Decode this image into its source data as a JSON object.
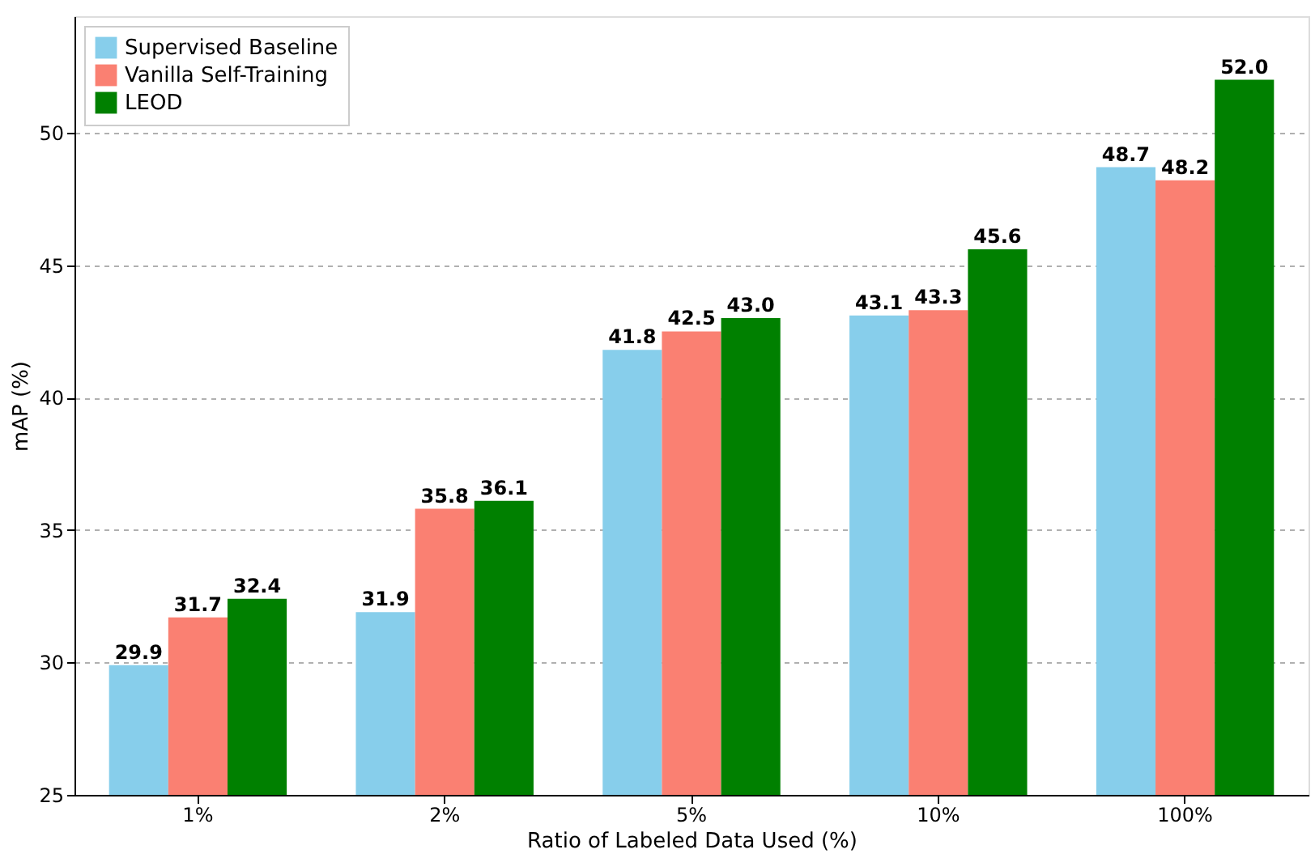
{
  "chart_data": {
    "type": "bar",
    "xlabel": "Ratio of Labeled Data Used (%)",
    "ylabel": "mAP (%)",
    "categories": [
      "1%",
      "2%",
      "5%",
      "10%",
      "100%"
    ],
    "series": [
      {
        "name": "Supervised Baseline",
        "color": "#87ceeb",
        "values": [
          29.9,
          31.9,
          41.8,
          43.1,
          48.7
        ],
        "value_labels": [
          "29.9",
          "31.9",
          "41.8",
          "43.1",
          "48.7"
        ]
      },
      {
        "name": "Vanilla Self-Training",
        "color": "#fa8072",
        "values": [
          31.7,
          35.8,
          42.5,
          43.3,
          48.2
        ],
        "value_labels": [
          "31.7",
          "35.8",
          "42.5",
          "43.3",
          "48.2"
        ]
      },
      {
        "name": "LEOD",
        "color": "#008000",
        "values": [
          32.4,
          36.1,
          43.0,
          45.6,
          52.0
        ],
        "value_labels": [
          "32.4",
          "36.1",
          "43.0",
          "45.6",
          "52.0"
        ]
      }
    ],
    "ylim": [
      25,
      54.4
    ],
    "yticks": [
      25,
      30,
      35,
      40,
      45,
      50
    ],
    "grid": "y",
    "legend": "top left"
  }
}
